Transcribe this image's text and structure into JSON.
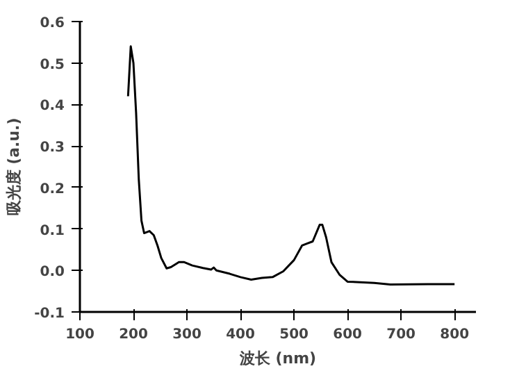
{
  "chart_data": {
    "type": "line",
    "xlabel": "波长 (nm)",
    "ylabel": "吸光度 (a.u.)",
    "xlim": [
      100,
      840
    ],
    "ylim": [
      -0.1,
      0.6
    ],
    "xticks": [
      100,
      200,
      300,
      400,
      500,
      600,
      700,
      800
    ],
    "yticks": [
      {
        "value": -0.1,
        "label": "-0.1"
      },
      {
        "value": 0,
        "label": "0.0"
      },
      {
        "value": 0.1,
        "label": "0.1"
      },
      {
        "value": 0.2,
        "label": "0.2"
      },
      {
        "value": 0.3,
        "label": "0.3"
      },
      {
        "value": 0.4,
        "label": "0.4"
      },
      {
        "value": 0.5,
        "label": "0.5"
      },
      {
        "value": 0.6,
        "label": "0.6"
      }
    ],
    "marker": "none",
    "line_style": "solid",
    "series": [
      {
        "color": "#000000",
        "x": [
          190,
          195,
          200,
          205,
          210,
          215,
          220,
          230,
          238,
          245,
          252,
          262,
          270,
          285,
          295,
          310,
          330,
          345,
          350,
          355,
          380,
          400,
          420,
          440,
          460,
          480,
          500,
          515,
          525,
          535,
          548,
          553,
          560,
          570,
          585,
          600,
          650,
          680,
          750,
          800
        ],
        "values": [
          0.42,
          0.54,
          0.5,
          0.38,
          0.22,
          0.12,
          0.09,
          0.095,
          0.085,
          0.06,
          0.03,
          0.005,
          0.008,
          0.02,
          0.02,
          0.012,
          0.006,
          0.002,
          0.007,
          0.0,
          -0.008,
          -0.016,
          -0.022,
          -0.018,
          -0.016,
          -0.002,
          0.025,
          0.06,
          0.065,
          0.07,
          0.11,
          0.11,
          0.08,
          0.02,
          -0.01,
          -0.027,
          -0.03,
          -0.034,
          -0.033,
          -0.033
        ]
      }
    ]
  }
}
